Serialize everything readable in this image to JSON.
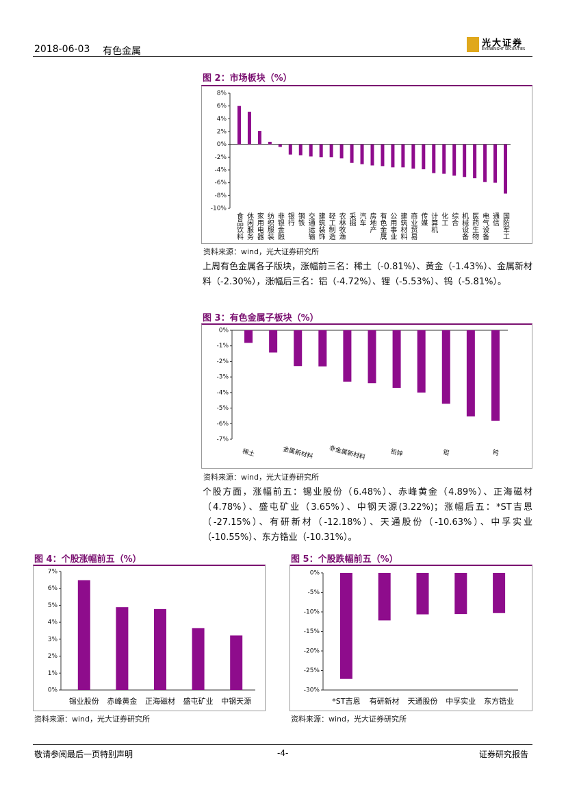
{
  "header": {
    "date": "2018-06-03",
    "sector": "有色金属",
    "logo": "光大证券",
    "logo_en": "EVERBRIGHT SECURITIES"
  },
  "chart_data": [
    {
      "type": "bar",
      "title": "图 2：市场板块（%）",
      "source": "资料来源：wind，光大证券研究所",
      "color": "#8e0c8c",
      "label_mode": "vertical",
      "categories": [
        "食品饮料",
        "休闲服务",
        "家用电器",
        "纺织服装",
        "非银金融",
        "银行",
        "钢铁",
        "交通运输",
        "建筑装饰",
        "轻工制造",
        "农林牧渔",
        "采掘",
        "汽车",
        "房地产",
        "有色金属",
        "公用事业",
        "建筑材料",
        "商业贸易",
        "传媒",
        "计算机",
        "化工",
        "综合",
        "机械设备",
        "医药生物",
        "电气设备",
        "通信",
        "国防军工"
      ],
      "values": [
        6.0,
        5.1,
        2.1,
        0.4,
        -0.4,
        -1.6,
        -1.7,
        -1.9,
        -2.0,
        -2.0,
        -2.2,
        -2.9,
        -3.1,
        -3.3,
        -3.4,
        -3.6,
        -3.6,
        -3.8,
        -3.9,
        -4.5,
        -4.6,
        -4.9,
        -5.1,
        -5.3,
        -5.9,
        -6.0,
        -7.7
      ],
      "ylim": [
        -10,
        8
      ],
      "yticks": [
        {
          "value": 8,
          "label": "8%"
        },
        {
          "value": 6,
          "label": "6%"
        },
        {
          "value": 4,
          "label": "4%"
        },
        {
          "value": 2,
          "label": "2%"
        },
        {
          "value": 0,
          "label": "0%"
        },
        {
          "value": -2,
          "label": "-2%"
        },
        {
          "value": -4,
          "label": "-4%"
        },
        {
          "value": -6,
          "label": "-6%"
        },
        {
          "value": -8,
          "label": "-8%"
        },
        {
          "value": -10,
          "label": "-10%"
        }
      ]
    },
    {
      "type": "bar",
      "title": "图 3：有色金属子板块（%）",
      "source": "资料来源：wind，光大证券研究所",
      "color": "#8e0c8c",
      "label_mode": "rotated",
      "categories": [
        "稀土",
        null,
        "金属新材料",
        null,
        "非金属新材料",
        null,
        "铅锌",
        null,
        "铝",
        null,
        "钨"
      ],
      "values": [
        -0.81,
        -1.43,
        -2.3,
        -2.32,
        -3.3,
        -3.4,
        -3.7,
        -4.0,
        -4.72,
        -5.53,
        -5.81
      ],
      "ylim": [
        -7,
        0
      ],
      "yticks": [
        {
          "value": 0,
          "label": "0%"
        },
        {
          "value": -1,
          "label": "-1%"
        },
        {
          "value": -2,
          "label": "-2%"
        },
        {
          "value": -3,
          "label": "-3%"
        },
        {
          "value": -4,
          "label": "-4%"
        },
        {
          "value": -5,
          "label": "-5%"
        },
        {
          "value": -6,
          "label": "-6%"
        },
        {
          "value": -7,
          "label": "-7%"
        }
      ]
    },
    {
      "type": "bar",
      "title": "图 4：个股涨幅前五（%）",
      "source": "资料来源：wind，光大证券研究所",
      "color": "#8e0c8c",
      "label_mode": "flat",
      "categories": [
        "锡业股份",
        "赤峰黄金",
        "正海磁材",
        "盛屯矿业",
        "中钢天源"
      ],
      "values": [
        6.48,
        4.89,
        4.78,
        3.65,
        3.22
      ],
      "ylim": [
        0,
        7
      ],
      "yticks": [
        {
          "value": 7,
          "label": "7%"
        },
        {
          "value": 6,
          "label": "6%"
        },
        {
          "value": 5,
          "label": "5%"
        },
        {
          "value": 4,
          "label": "4%"
        },
        {
          "value": 3,
          "label": "3%"
        },
        {
          "value": 2,
          "label": "2%"
        },
        {
          "value": 1,
          "label": "1%"
        },
        {
          "value": 0,
          "label": "0%"
        }
      ]
    },
    {
      "type": "bar",
      "title": "图 5：个股跌幅前五（%）",
      "source": "资料来源：wind，光大证券研究所",
      "color": "#8e0c8c",
      "label_mode": "flat",
      "categories": [
        "*ST吉恩",
        "有研新材",
        "天通股份",
        "中孚实业",
        "东方锆业"
      ],
      "values": [
        -27.15,
        -12.18,
        -10.63,
        -10.55,
        -10.31
      ],
      "ylim": [
        -30,
        0
      ],
      "yticks": [
        {
          "value": 0,
          "label": "0%"
        },
        {
          "value": -5,
          "label": "-5%"
        },
        {
          "value": -10,
          "label": "-10%"
        },
        {
          "value": -15,
          "label": "-15%"
        },
        {
          "value": -20,
          "label": "-20%"
        },
        {
          "value": -25,
          "label": "-25%"
        },
        {
          "value": -30,
          "label": "-30%"
        }
      ]
    }
  ],
  "paragraphs": [
    "上周有色金属各子版块，涨幅前三名：稀土（-0.81%）、黄金（-1.43%）、金属新材料（-2.30%），涨幅后三名：铝（-4.72%）、锂（-5.53%）、钨（-5.81%）。",
    "个股方面，涨幅前五：锡业股份（6.48%）、赤峰黄金（4.89%）、正海磁材（4.78%）、盛屯矿业（3.65%）、中钢天源(3.22%)；涨幅后五：*ST吉恩（-27.15%）、有研新材（-12.18%）、天通股份（-10.63%）、中孚实业（-10.55%）、东方锆业（-10.31%）。"
  ],
  "footer": {
    "disclaimer": "敬请参阅最后一页特别声明",
    "page": "-4-",
    "type": "证券研究报告"
  }
}
